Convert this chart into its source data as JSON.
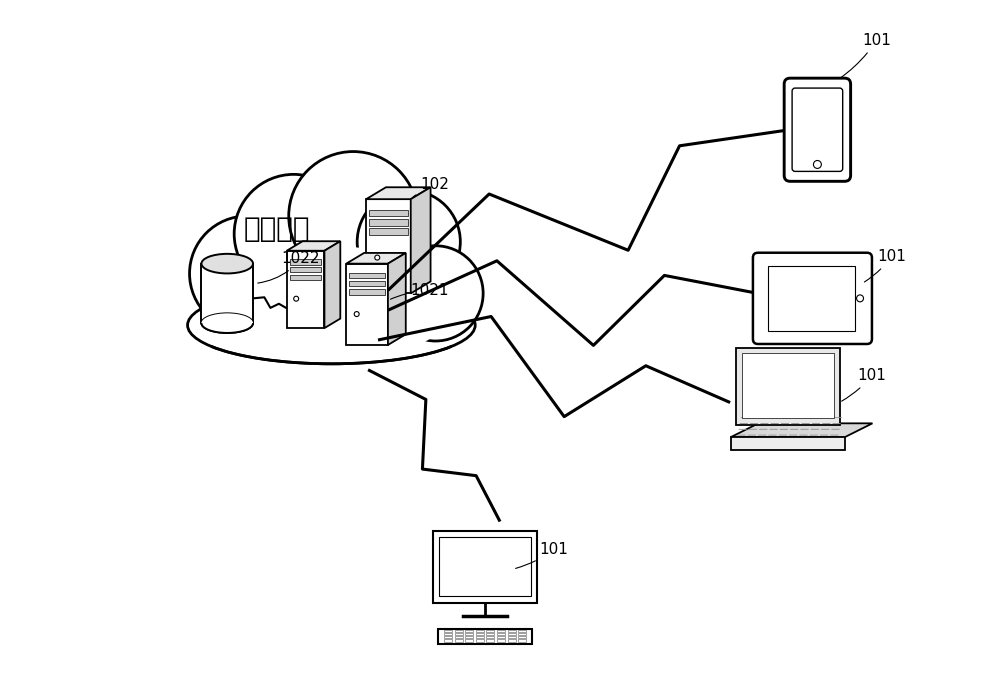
{
  "background_color": "#ffffff",
  "cloud_label": "资源平台",
  "label_102": "102",
  "label_1021": "1021",
  "label_1022": "1022",
  "label_101": "101",
  "figsize": [
    10.0,
    6.83
  ],
  "dpi": 100,
  "lw_cloud": 2.0,
  "lw_device": 1.8,
  "lw_lightning": 2.2
}
